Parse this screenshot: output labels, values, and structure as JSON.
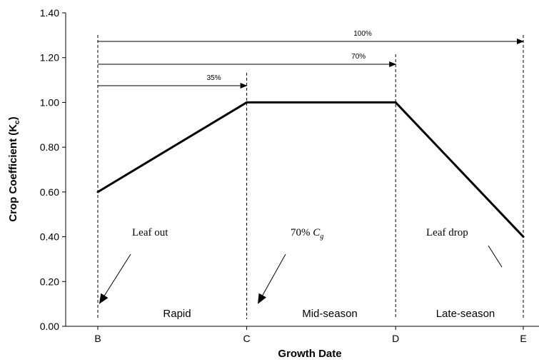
{
  "chart_data": {
    "type": "line",
    "ylabel": "Crop Coefficient (K",
    "ylabel_sub": "c",
    "ylabel_close": ")",
    "xlabel": "Growth Date",
    "ylim": [
      0,
      1.4
    ],
    "yticks": [
      "0.00",
      "0.20",
      "0.40",
      "0.60",
      "0.80",
      "1.00",
      "1.20",
      "1.40"
    ],
    "x_stage_ticks": [
      "B",
      "C",
      "D",
      "E"
    ],
    "x_stage_positions": [
      0,
      0.35,
      0.7,
      1.0
    ],
    "series": [
      {
        "x": [
          0,
          0.35,
          0.7,
          1.0
        ],
        "y": [
          0.6,
          1.0,
          1.0,
          0.4
        ]
      }
    ],
    "percent_arrows": [
      {
        "label": "35%",
        "end": 0.35
      },
      {
        "label": "70%",
        "end": 0.7
      },
      {
        "label": "100%",
        "end": 1.0
      }
    ],
    "stage_labels": [
      "Rapid",
      "Mid-season",
      "Late-season"
    ],
    "annotations": {
      "leaf_out": "Leaf out",
      "cg_prefix": "70% ",
      "cg_var": "C",
      "cg_sub": "g",
      "leaf_drop": "Leaf drop"
    },
    "grid": false
  }
}
